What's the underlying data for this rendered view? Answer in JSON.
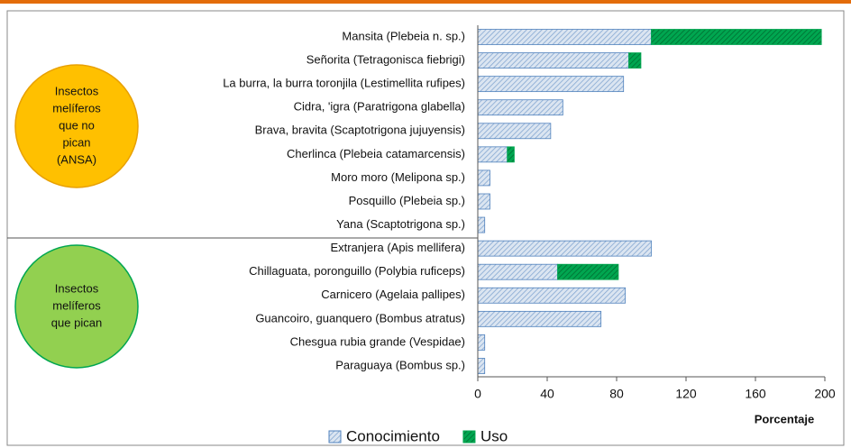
{
  "chart_data": {
    "type": "stacked_barh",
    "categories": [
      "Mansita (Plebeia n. sp.)",
      "Señorita (Tetragonisca fiebrigi)",
      "La burra, la burra toronjila (Lestimellita rufipes)",
      "Cidra, 'igra (Paratrigona glabella)",
      "Brava, bravita (Scaptotrigona jujuyensis)",
      "Cherlinca (Plebeia catamarcensis)",
      "Moro moro (Melipona sp.)",
      "Posquillo (Plebeia sp.)",
      "Yana (Scaptotrigona sp.)",
      "Extranjera (Apis mellifera)",
      "Chillaguata, poronguillo (Polybia ruficeps)",
      "Carnicero (Agelaia pallipes)",
      "Guancoiro, guanquero (Bombus atratus)",
      "Chesgua rubia grande (Vespidae)",
      "Paraguaya (Bombus sp.)"
    ],
    "series": [
      {
        "name": "Conocimiento",
        "color": "#4f81bd",
        "values": [
          100,
          87,
          84,
          49,
          42,
          17,
          7,
          7,
          4,
          100,
          46,
          85,
          71,
          4,
          4
        ]
      },
      {
        "name": "Uso",
        "color": "#00a650",
        "values": [
          98,
          7,
          0,
          0,
          0,
          4,
          0,
          0,
          0,
          0,
          35,
          0,
          0,
          0,
          0
        ]
      }
    ],
    "xlabel": "Porcentaje",
    "xlim": [
      0,
      200
    ],
    "xticks": [
      0,
      40,
      80,
      120,
      160,
      200
    ],
    "groups": [
      {
        "lines": [
          "Insectos",
          "melíferos",
          "que no",
          "pican",
          "(ANSA)"
        ],
        "color": "#ffc000"
      },
      {
        "lines": [
          "Insectos",
          "melíferos",
          "que pican"
        ],
        "color": "#92d050"
      }
    ],
    "legend": "bottom"
  }
}
